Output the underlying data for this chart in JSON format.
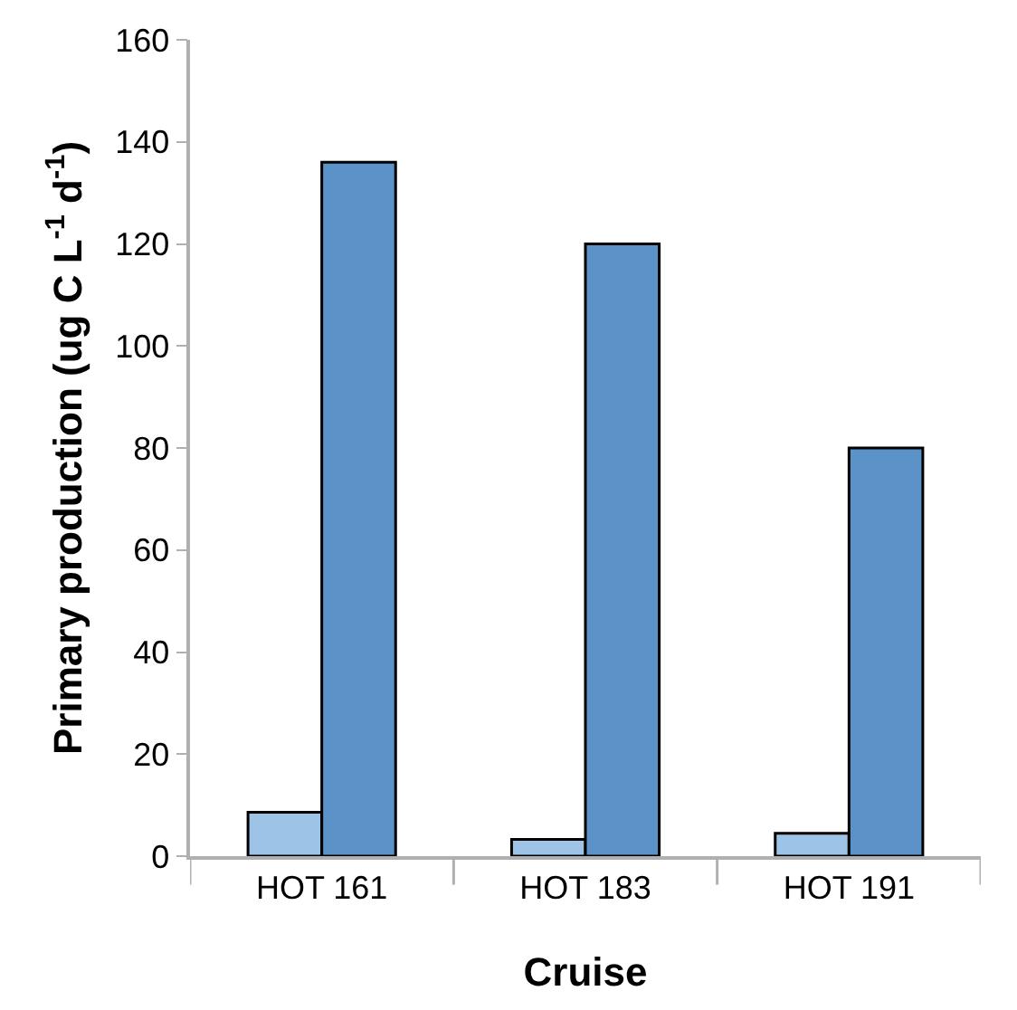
{
  "chart_data": {
    "type": "bar",
    "xlabel": "Cruise",
    "ylabel": "Primary production (ug C L$^{-1}$ d$^{-1}$)",
    "categories": [
      "HOT 161",
      "HOT 183",
      "HOT 191"
    ],
    "series": [
      {
        "color": "#9dc3e6",
        "values": [
          8.6,
          3.3,
          4.5
        ]
      },
      {
        "color": "#5b93c9",
        "values": [
          136,
          120,
          80
        ]
      }
    ],
    "ylim": [
      0,
      160
    ],
    "yticks": [
      0,
      20,
      40,
      60,
      80,
      100,
      120,
      140,
      160
    ],
    "grid": false
  }
}
